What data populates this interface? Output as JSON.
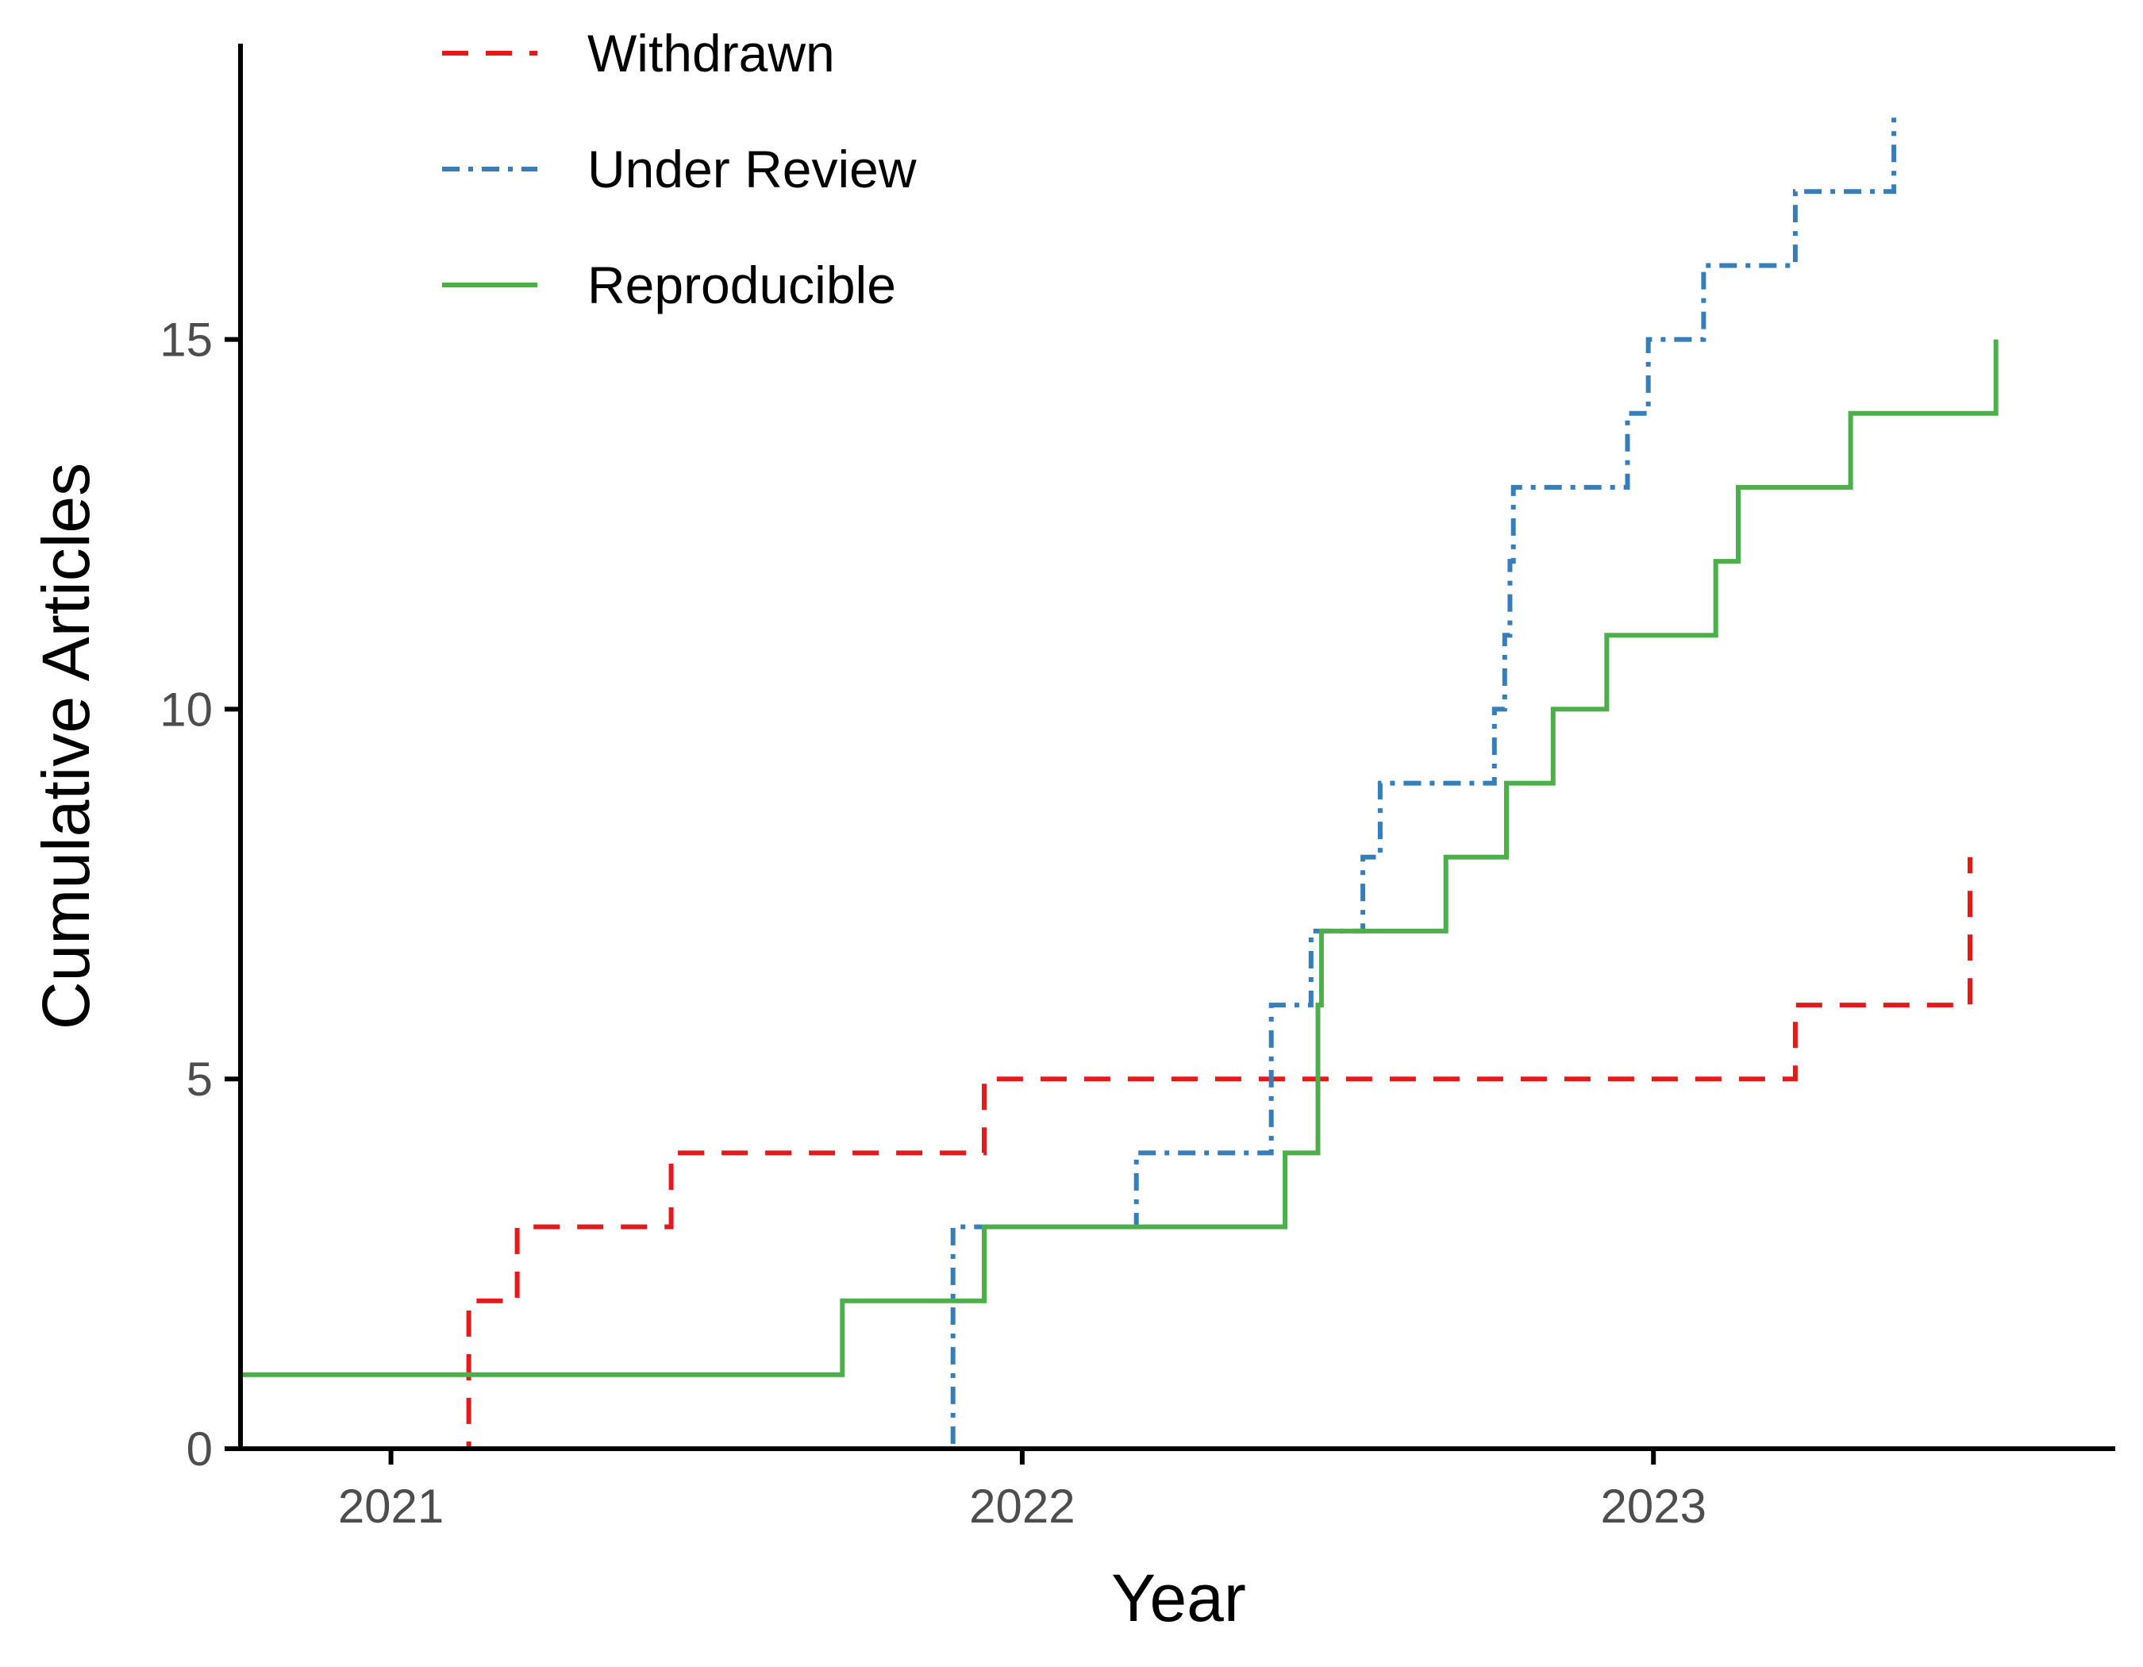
{
  "chart_data": {
    "type": "line",
    "step": true,
    "xlabel": "Year",
    "ylabel": "Cumulative Articles",
    "xlim": [
      "2020-10-06",
      "2023-09-25"
    ],
    "ylim": [
      0,
      19
    ],
    "x_ticks": [
      {
        "label": "2021",
        "date": "2021-01-01"
      },
      {
        "label": "2022",
        "date": "2022-01-01"
      },
      {
        "label": "2023",
        "date": "2023-01-01"
      }
    ],
    "y_ticks": [
      0,
      5,
      10,
      15
    ],
    "grid": false,
    "legend_position": "top-left",
    "series": [
      {
        "name": "Withdrawn",
        "color": "#e31a1c",
        "line_style": "dashed",
        "points": [
          {
            "x": "2021-02-04",
            "y": 0
          },
          {
            "x": "2021-02-15",
            "y": 2
          },
          {
            "x": "2021-03-15",
            "y": 3
          },
          {
            "x": "2021-06-12",
            "y": 4
          },
          {
            "x": "2021-12-10",
            "y": 5
          },
          {
            "x": "2023-03-24",
            "y": 6
          },
          {
            "x": "2023-07-03",
            "y": 8
          }
        ]
      },
      {
        "name": "Under Review",
        "color": "#377eb8",
        "line_style": "dotdash",
        "points": [
          {
            "x": "2021-08-25",
            "y": 0
          },
          {
            "x": "2021-11-22",
            "y": 3
          },
          {
            "x": "2022-03-08",
            "y": 4
          },
          {
            "x": "2022-05-25",
            "y": 6
          },
          {
            "x": "2022-06-17",
            "y": 7
          },
          {
            "x": "2022-07-17",
            "y": 8
          },
          {
            "x": "2022-07-27",
            "y": 9
          },
          {
            "x": "2022-10-01",
            "y": 10
          },
          {
            "x": "2022-10-07",
            "y": 11
          },
          {
            "x": "2022-10-10",
            "y": 12
          },
          {
            "x": "2022-10-12",
            "y": 13
          },
          {
            "x": "2022-12-17",
            "y": 14
          },
          {
            "x": "2022-12-29",
            "y": 15
          },
          {
            "x": "2023-01-30",
            "y": 16
          },
          {
            "x": "2023-03-24",
            "y": 17
          },
          {
            "x": "2023-05-20",
            "y": 18
          }
        ]
      },
      {
        "name": "Reproducible",
        "color": "#4daf4a",
        "line_style": "solid",
        "points": [
          {
            "x": "2020-10-06",
            "y": 1
          },
          {
            "x": "2021-09-19",
            "y": 2
          },
          {
            "x": "2021-12-10",
            "y": 3
          },
          {
            "x": "2022-06-02",
            "y": 4
          },
          {
            "x": "2022-06-21",
            "y": 6
          },
          {
            "x": "2022-06-23",
            "y": 7
          },
          {
            "x": "2022-09-03",
            "y": 8
          },
          {
            "x": "2022-10-08",
            "y": 9
          },
          {
            "x": "2022-11-04",
            "y": 10
          },
          {
            "x": "2022-12-05",
            "y": 11
          },
          {
            "x": "2023-02-06",
            "y": 12
          },
          {
            "x": "2023-02-19",
            "y": 13
          },
          {
            "x": "2023-04-25",
            "y": 14
          },
          {
            "x": "2023-07-18",
            "y": 15
          }
        ]
      }
    ]
  }
}
